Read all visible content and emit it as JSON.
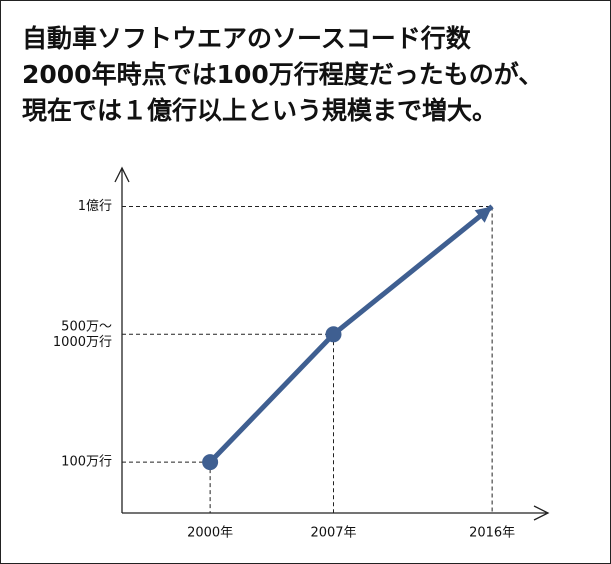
{
  "chart_data": {
    "type": "line",
    "title": [
      "自動車ソフトウエアのソースコード行数",
      "2000年時点では100万行程度だったものが、",
      "現在では１億行以上という規模まで増大。"
    ],
    "x": [
      2000,
      2007,
      2016
    ],
    "series": [
      {
        "color": "#3f5f91",
        "values": [
          1000000,
          10000000,
          100000000
        ]
      }
    ],
    "xlim": [
      1995,
      2019
    ],
    "xticks": [
      {
        "value": 2000,
        "label": "2000年"
      },
      {
        "value": 2007,
        "label": "2007年"
      },
      {
        "value": 2016,
        "label": "2016年"
      }
    ],
    "ylim": [
      400000,
      200000000
    ],
    "yticks": [
      {
        "value": 1000000,
        "label": "100万行"
      },
      {
        "value": 10000000,
        "label": "500万～\n1000万行"
      },
      {
        "value": 100000000,
        "label": "1億行"
      }
    ],
    "log_y": true
  }
}
